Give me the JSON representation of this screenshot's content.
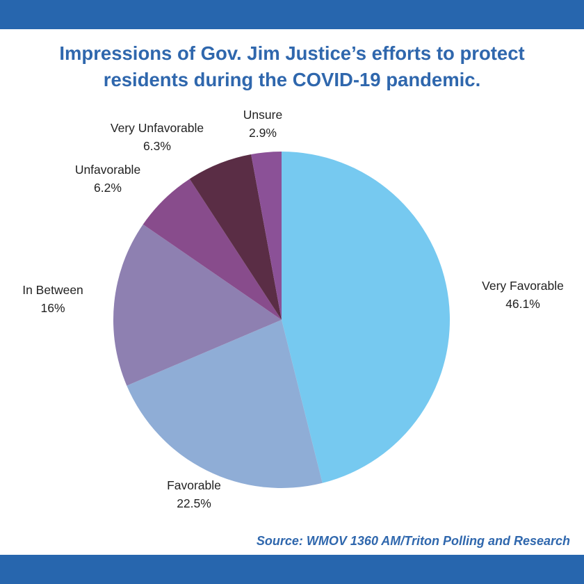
{
  "header": {
    "title_line1": "Impressions of Gov. Jim Justice’s efforts to protect",
    "title_line2": "residents during the COVID-19 pandemic."
  },
  "footer": {
    "source": "Source: WMOV 1360 AM/Triton Polling and Research"
  },
  "colors": {
    "frame_bar": "#2766ae",
    "title": "#2f67ad"
  },
  "chart_data": {
    "type": "pie",
    "title": "Impressions of Gov. Jim Justice’s efforts to protect residents during the COVID-19 pandemic.",
    "slices": [
      {
        "label": "Very Favorable",
        "value": 46.1,
        "display": "46.1%",
        "color": "#76c9f0"
      },
      {
        "label": "Favorable",
        "value": 22.5,
        "display": "22.5%",
        "color": "#8fadd6"
      },
      {
        "label": "In Between",
        "value": 16,
        "display": "16%",
        "color": "#8e80b1"
      },
      {
        "label": "Unfavorable",
        "value": 6.2,
        "display": "6.2%",
        "color": "#884c8c"
      },
      {
        "label": "Very Unfavorable",
        "value": 6.3,
        "display": "6.3%",
        "color": "#5a2d45"
      },
      {
        "label": "Unsure",
        "value": 2.9,
        "display": "2.9%",
        "color": "#8b5197"
      }
    ]
  }
}
